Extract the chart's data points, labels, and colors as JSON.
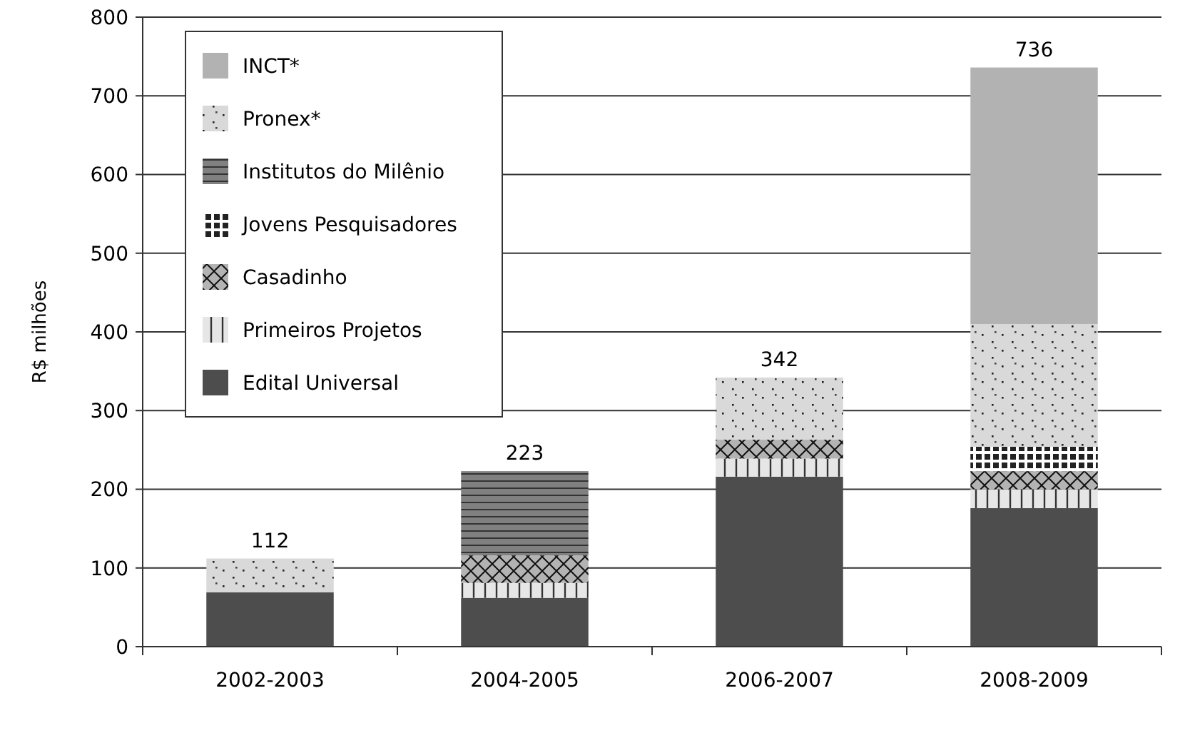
{
  "chart_data": {
    "type": "bar",
    "stacked": true,
    "ylabel": "R$ milhões",
    "categories": [
      "2002-2003",
      "2004-2005",
      "2006-2007",
      "2008-2009"
    ],
    "series": [
      {
        "name": "Edital Universal",
        "color": "#4d4d4d",
        "values": [
          69,
          62,
          216,
          176
        ]
      },
      {
        "name": "Primeiros Projetos",
        "color": "#e6e6e6",
        "values": [
          null,
          19,
          23,
          24
        ]
      },
      {
        "name": "Casadinho",
        "color": "#b3b3b3",
        "values": [
          null,
          35,
          24,
          23
        ]
      },
      {
        "name": "Jovens Pesquisadores",
        "color": "#222222",
        "values": [
          null,
          null,
          null,
          31
        ]
      },
      {
        "name": "Institutos do Milênio",
        "color": "#808080",
        "values": [
          null,
          107,
          null,
          null
        ]
      },
      {
        "name": "Pronex*",
        "color": "#d9d9d9",
        "values": [
          43,
          null,
          79,
          156
        ]
      },
      {
        "name": "INCT*",
        "color": "#b2b2b2",
        "values": [
          null,
          null,
          null,
          326
        ]
      }
    ],
    "totals": [
      "112",
      "223",
      "342",
      "736"
    ],
    "ylim": [
      0,
      800
    ],
    "yticks": [
      0,
      100,
      200,
      300,
      400,
      500,
      600,
      700,
      800
    ],
    "grid": "y",
    "legend": "top left"
  }
}
